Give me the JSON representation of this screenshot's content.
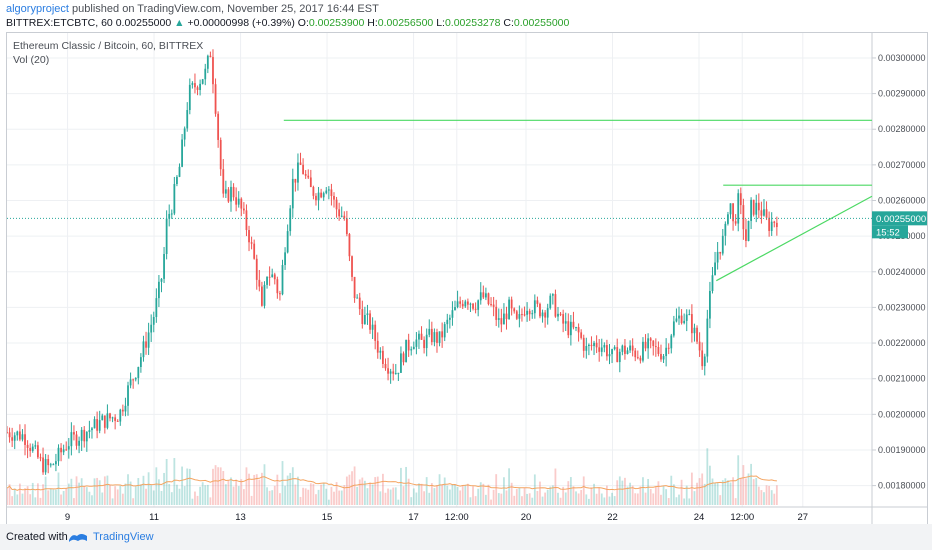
{
  "header": {
    "author": "algoryproject",
    "published_text": "published on TradingView.com, November 25, 2017 16:44 EST",
    "symbol_line": "BITTREX:ETCBTC, 60",
    "last_price": "0.00255000",
    "change_arrow": "▲",
    "change_text": "+0.00000998 (+0.39%)",
    "open_label": "O:",
    "open_value": "0.00253900",
    "high_label": "H:",
    "high_value": "0.00256500",
    "low_label": "L:",
    "low_value": "0.00253278",
    "close_label": "C:",
    "close_value": "0.00255000"
  },
  "legend": {
    "series_title": "Ethereum Classic / Bitcoin, 60, BITTREX",
    "volume_label": "Vol (20)"
  },
  "footer": {
    "created_with": "Created with",
    "brand": "TradingView"
  },
  "colors": {
    "up": "#26a69a",
    "down": "#ef5350",
    "trendline": "#4cd964",
    "price_tag": "#26a69a",
    "ma": "#f4a460",
    "grid": "#eef0f3"
  },
  "chart_data": {
    "type": "candlestick",
    "title": "Ethereum Classic / Bitcoin, 60, BITTREX",
    "ylim": [
      0.00174,
      0.00307
    ],
    "y_ticks": [
      "0.00300000",
      "0.00290000",
      "0.00280000",
      "0.00270000",
      "0.00260000",
      "0.00250000",
      "0.00240000",
      "0.00230000",
      "0.00220000",
      "0.00210000",
      "0.00200000",
      "0.00190000",
      "0.00180000"
    ],
    "x_ticks": [
      {
        "label": "9",
        "x": 0.07
      },
      {
        "label": "11",
        "x": 0.17
      },
      {
        "label": "13",
        "x": 0.27
      },
      {
        "label": "15",
        "x": 0.37
      },
      {
        "label": "17",
        "x": 0.47
      },
      {
        "label": "12:00",
        "x": 0.52
      },
      {
        "label": "20",
        "x": 0.6
      },
      {
        "label": "22",
        "x": 0.7
      },
      {
        "label": "24",
        "x": 0.8
      },
      {
        "label": "12:00",
        "x": 0.85
      },
      {
        "label": "27",
        "x": 0.92
      }
    ],
    "current_price": {
      "value": 0.00255,
      "label": "0.00255000",
      "countdown": "15:52"
    },
    "price_path": [
      [
        0.0,
        0.00195
      ],
      [
        0.02,
        0.00194
      ],
      [
        0.03,
        0.0019
      ],
      [
        0.04,
        0.00186
      ],
      [
        0.05,
        0.00185
      ],
      [
        0.07,
        0.00192
      ],
      [
        0.09,
        0.00195
      ],
      [
        0.11,
        0.00198
      ],
      [
        0.13,
        0.002
      ],
      [
        0.14,
        0.00207
      ],
      [
        0.15,
        0.00213
      ],
      [
        0.16,
        0.0022
      ],
      [
        0.17,
        0.00228
      ],
      [
        0.18,
        0.0024
      ],
      [
        0.185,
        0.00255
      ],
      [
        0.19,
        0.00258
      ],
      [
        0.2,
        0.0027
      ],
      [
        0.21,
        0.0029
      ],
      [
        0.22,
        0.00293
      ],
      [
        0.23,
        0.00296
      ],
      [
        0.235,
        0.00302
      ],
      [
        0.24,
        0.0029
      ],
      [
        0.245,
        0.00275
      ],
      [
        0.25,
        0.0026
      ],
      [
        0.26,
        0.00263
      ],
      [
        0.27,
        0.00258
      ],
      [
        0.28,
        0.0025
      ],
      [
        0.29,
        0.00238
      ],
      [
        0.295,
        0.00228
      ],
      [
        0.3,
        0.0024
      ],
      [
        0.31,
        0.00238
      ],
      [
        0.315,
        0.00232
      ],
      [
        0.32,
        0.00245
      ],
      [
        0.33,
        0.00265
      ],
      [
        0.34,
        0.0027
      ],
      [
        0.35,
        0.00263
      ],
      [
        0.36,
        0.00262
      ],
      [
        0.37,
        0.00265
      ],
      [
        0.38,
        0.00258
      ],
      [
        0.39,
        0.00255
      ],
      [
        0.4,
        0.00235
      ],
      [
        0.41,
        0.00228
      ],
      [
        0.42,
        0.00225
      ],
      [
        0.43,
        0.00218
      ],
      [
        0.44,
        0.00214
      ],
      [
        0.45,
        0.00212
      ],
      [
        0.46,
        0.00218
      ],
      [
        0.47,
        0.00221
      ],
      [
        0.48,
        0.0022
      ],
      [
        0.49,
        0.00222
      ],
      [
        0.5,
        0.00221
      ],
      [
        0.51,
        0.00226
      ],
      [
        0.52,
        0.0023
      ],
      [
        0.53,
        0.00233
      ],
      [
        0.54,
        0.00231
      ],
      [
        0.55,
        0.00233
      ],
      [
        0.56,
        0.0023
      ],
      [
        0.57,
        0.00225
      ],
      [
        0.58,
        0.0023
      ],
      [
        0.59,
        0.00225
      ],
      [
        0.6,
        0.00231
      ],
      [
        0.61,
        0.0023
      ],
      [
        0.62,
        0.00229
      ],
      [
        0.63,
        0.00232
      ],
      [
        0.64,
        0.00226
      ],
      [
        0.65,
        0.00224
      ],
      [
        0.66,
        0.00223
      ],
      [
        0.67,
        0.00218
      ],
      [
        0.68,
        0.0022
      ],
      [
        0.69,
        0.00219
      ],
      [
        0.7,
        0.00216
      ],
      [
        0.71,
        0.00218
      ],
      [
        0.72,
        0.00218
      ],
      [
        0.73,
        0.00217
      ],
      [
        0.74,
        0.00219
      ],
      [
        0.75,
        0.00218
      ],
      [
        0.76,
        0.00217
      ],
      [
        0.77,
        0.00225
      ],
      [
        0.78,
        0.00228
      ],
      [
        0.79,
        0.00226
      ],
      [
        0.8,
        0.00219
      ],
      [
        0.805,
        0.00214
      ],
      [
        0.81,
        0.00228
      ],
      [
        0.82,
        0.00245
      ],
      [
        0.83,
        0.0025
      ],
      [
        0.835,
        0.00262
      ],
      [
        0.84,
        0.00252
      ],
      [
        0.845,
        0.0026
      ],
      [
        0.85,
        0.00255
      ],
      [
        0.855,
        0.00248
      ],
      [
        0.86,
        0.00258
      ],
      [
        0.87,
        0.00258
      ],
      [
        0.88,
        0.00253
      ],
      [
        0.89,
        0.00255
      ]
    ],
    "trendlines": [
      {
        "from": [
          0.32,
          0.002825
        ],
        "to": [
          1.0,
          0.002825
        ]
      },
      {
        "from": [
          0.828,
          0.002643
        ],
        "to": [
          1.0,
          0.002643
        ]
      },
      {
        "from": [
          0.82,
          0.002375
        ],
        "to": [
          1.0,
          0.002612
        ]
      }
    ]
  }
}
